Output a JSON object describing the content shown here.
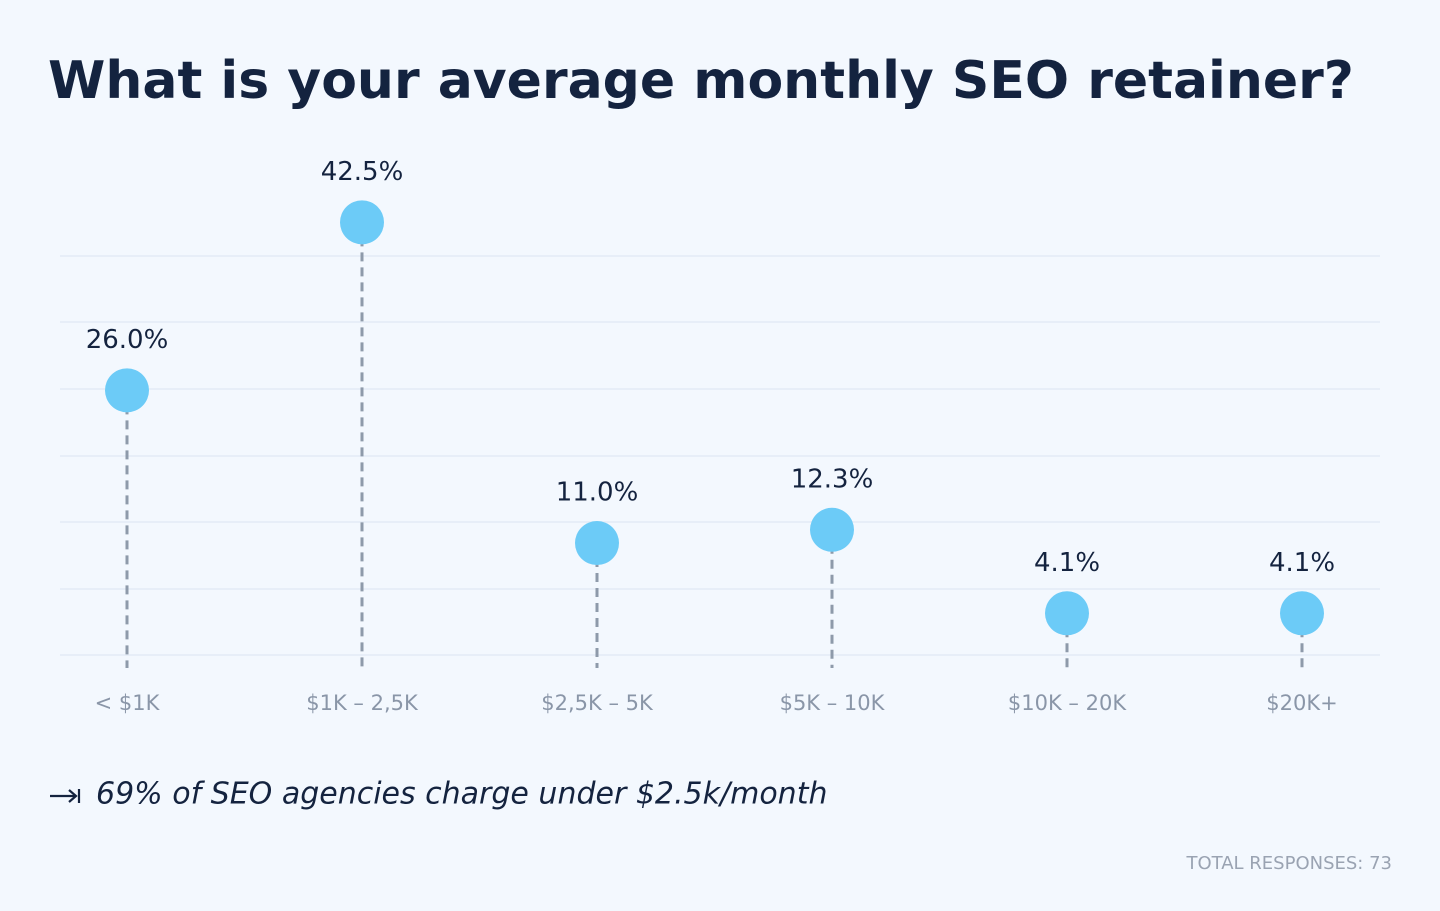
{
  "chart_data": {
    "type": "lollipop",
    "title": "What is your average monthly SEO retainer?",
    "categories": [
      "< $1K",
      "$1K – 2,5K",
      "$2,5K – 5K",
      "$5K – 10K",
      "$10K – 20K",
      "$20K+"
    ],
    "values": [
      26.0,
      42.5,
      11.0,
      12.3,
      4.1,
      4.1
    ],
    "value_labels": [
      "26.0%",
      "42.5%",
      "11.0%",
      "12.3%",
      "4.1%",
      "4.1%"
    ],
    "color": "#6ccbf7",
    "stem_color": "#8e9aaa",
    "ylim": [
      0,
      50
    ],
    "annotation": "69% of SEO agencies charge under $2.5k/month",
    "footnote": "TOTAL RESPONSES: 73"
  }
}
